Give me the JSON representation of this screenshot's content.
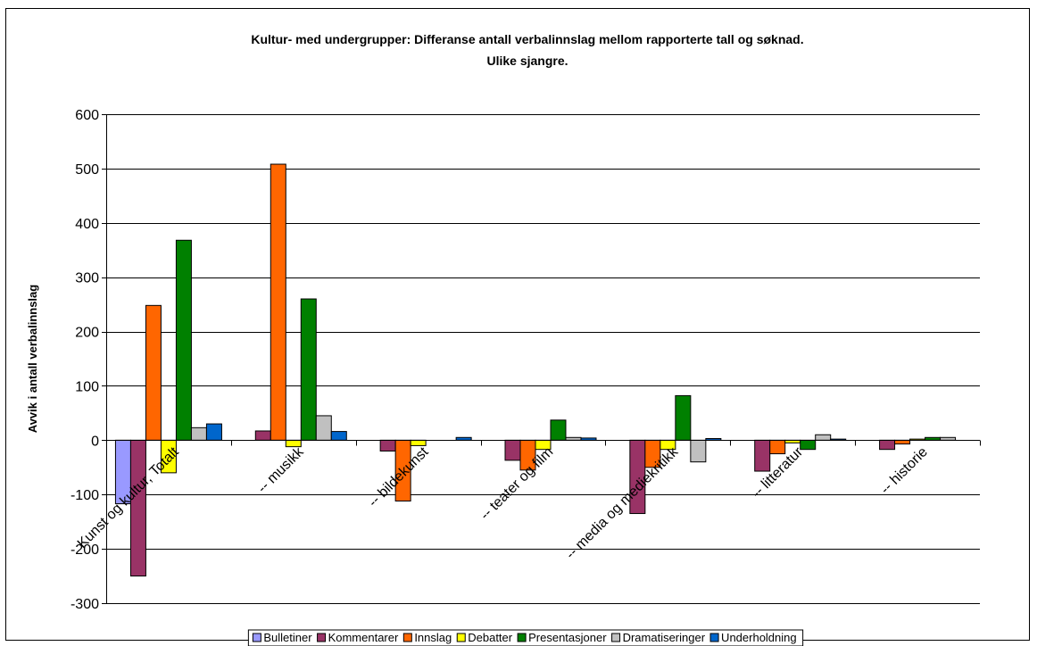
{
  "chart_data": {
    "type": "bar",
    "title": [
      "Kultur- med undergrupper: Differanse antall verbalinnslag mellom rapporterte tall og søknad.",
      "Ulike sjangre."
    ],
    "ylabel": "Avvik i antall verbalinnslag",
    "xlabel": "",
    "ylim": [
      -300,
      600
    ],
    "yticks": [
      600,
      500,
      400,
      300,
      200,
      100,
      0,
      -100,
      -200,
      -300
    ],
    "grid": true,
    "legend_position": "bottom",
    "categories": [
      "Kunst og kultur, Totalt",
      "-- musikk",
      "-- bildekunst",
      "-- teater og film",
      "-- media og mediekritikk",
      "-- litteratur",
      "-- historie"
    ],
    "series": [
      {
        "name": "Bulletiner",
        "color": "#9999ff",
        "values": [
          -117,
          0,
          0,
          0,
          0,
          0,
          0
        ]
      },
      {
        "name": "Kommentarer",
        "color": "#993366",
        "values": [
          -250,
          17,
          -20,
          -37,
          -135,
          -57,
          -17
        ]
      },
      {
        "name": "Innslag",
        "color": "#ff6600",
        "values": [
          248,
          508,
          -112,
          -55,
          -50,
          -25,
          -7
        ]
      },
      {
        "name": "Debatter",
        "color": "#ffff00",
        "values": [
          -60,
          -12,
          -10,
          -17,
          -17,
          -5,
          2
        ]
      },
      {
        "name": "Presentasjoner",
        "color": "#008000",
        "values": [
          368,
          260,
          0,
          37,
          82,
          -17,
          5
        ]
      },
      {
        "name": "Dramatiseringer",
        "color": "#c0c0c0",
        "values": [
          23,
          45,
          0,
          5,
          -40,
          10,
          5
        ]
      },
      {
        "name": "Underholdning",
        "color": "#0066cc",
        "values": [
          30,
          16,
          5,
          4,
          3,
          2,
          0
        ]
      }
    ]
  }
}
